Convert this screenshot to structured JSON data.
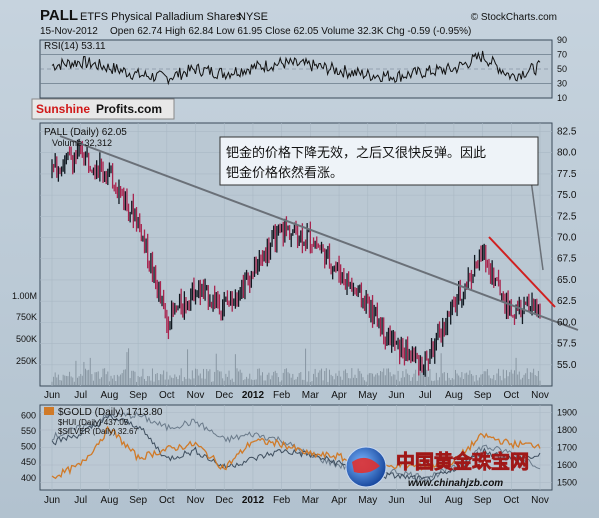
{
  "header": {
    "ticker": "PALL",
    "name": "ETFS Physical Palladium Shares",
    "exchange": "NYSE",
    "site": "© StockCharts.com",
    "date": "15-Nov-2012",
    "ohlc": "Open 62.74  High 62.84  Low 61.95  Close 62.05  Volume 32.3K  Chg -0.59 (-0.95%)"
  },
  "rsi": {
    "label": "RSI(14) 53.11",
    "ticks": [
      "90",
      "70",
      "50",
      "30",
      "10"
    ]
  },
  "brand": {
    "part1": "Sunshine",
    "part2": "Profits.com"
  },
  "price": {
    "legend_main": "PALL (Daily) 62.05",
    "legend_volume": "Volume 32,312",
    "right_ticks": [
      "82.5",
      "80.0",
      "77.5",
      "75.0",
      "72.5",
      "70.0",
      "67.5",
      "65.0",
      "62.5",
      "60.0",
      "57.5",
      "55.0"
    ],
    "volume_ticks": [
      "1.00M",
      "750K",
      "500K",
      "250K"
    ],
    "annotation_line1": "钯金的价格下降无效，之后又很快反弹。因此",
    "annotation_line2": "钯金价格依然看涨。"
  },
  "x_axis": {
    "labels": [
      "Jun",
      "Jul",
      "Aug",
      "Sep",
      "Oct",
      "Nov",
      "Dec",
      "2012",
      "Feb",
      "Mar",
      "Apr",
      "May",
      "Jun",
      "Jul",
      "Aug",
      "Sep",
      "Oct",
      "Nov"
    ]
  },
  "bottom": {
    "legend_gold": "$GOLD (Daily) 1713.80",
    "legend_hui": "$HUI (Daily) 437.05",
    "legend_silver": "$SILVER (Daily) 32.67",
    "left_ticks": [
      "600",
      "550",
      "500",
      "450",
      "400"
    ],
    "right_ticks": [
      "1900",
      "1800",
      "1700",
      "1600",
      "1500"
    ],
    "watermark_cn": "中国黄金珠宝网",
    "watermark_url": "www.chinahjzb.com"
  },
  "colors": {
    "panel_bg": "#b9c8d4",
    "frame": "#2a4a6a",
    "price_up": "#101820",
    "price_down": "#a8244e",
    "trend": "#6a7078",
    "red_trend": "#d02020",
    "gold": "#d07a28",
    "hui": "#6a7a8a",
    "silver": "#4a5a6a",
    "brand_red": "#d01818"
  },
  "chart_data": [
    {
      "type": "line",
      "name": "RSI(14)",
      "x": [
        "Jun",
        "Jul",
        "Aug",
        "Sep",
        "Oct",
        "Nov",
        "Dec",
        "2012",
        "Feb",
        "Mar",
        "Apr",
        "May",
        "Jun",
        "Jul",
        "Aug",
        "Sep",
        "Oct",
        "Nov"
      ],
      "y": [
        55,
        60,
        52,
        42,
        38,
        50,
        44,
        52,
        58,
        55,
        48,
        42,
        40,
        46,
        50,
        68,
        40,
        53
      ],
      "ylim": [
        10,
        90
      ],
      "last": 53.11
    },
    {
      "type": "bar",
      "name": "PALL (Daily)",
      "x": [
        "Jun",
        "Jul",
        "Aug",
        "Sep",
        "Oct",
        "Nov",
        "Dec",
        "2012",
        "Feb",
        "Mar",
        "Apr",
        "May",
        "Jun",
        "Jul",
        "Aug",
        "Sep",
        "Oct",
        "Nov"
      ],
      "close": [
        78,
        80,
        77.5,
        72,
        60,
        64,
        62,
        66,
        71,
        70,
        66,
        62,
        57,
        55,
        62,
        68,
        61,
        62.05
      ],
      "ylim": [
        52.5,
        83.5
      ],
      "last": 62.05
    },
    {
      "type": "line",
      "name": "$GOLD (Daily)",
      "x": [
        "Jun",
        "Jul",
        "Aug",
        "Sep",
        "Oct",
        "Nov",
        "Dec",
        "2012",
        "Feb",
        "Mar",
        "Apr",
        "May",
        "Jun",
        "Jul",
        "Aug",
        "Sep",
        "Oct",
        "Nov"
      ],
      "y": [
        1530,
        1600,
        1810,
        1640,
        1690,
        1720,
        1580,
        1740,
        1720,
        1660,
        1650,
        1560,
        1600,
        1590,
        1620,
        1770,
        1720,
        1713.8
      ],
      "last": 1713.8
    },
    {
      "type": "line",
      "name": "$HUI (Daily)",
      "x": [
        "Jun",
        "Jul",
        "Aug",
        "Sep",
        "Oct",
        "Nov",
        "Dec",
        "2012",
        "Feb",
        "Mar",
        "Apr",
        "May",
        "Jun",
        "Jul",
        "Aug",
        "Sep",
        "Oct",
        "Nov"
      ],
      "y": [
        530,
        560,
        600,
        600,
        560,
        580,
        520,
        540,
        520,
        470,
        440,
        420,
        420,
        400,
        430,
        500,
        480,
        437.05
      ],
      "last": 437.05
    },
    {
      "type": "line",
      "name": "$SILVER (Daily)",
      "x": [
        "Jun",
        "Jul",
        "Aug",
        "Sep",
        "Oct",
        "Nov",
        "Dec",
        "2012",
        "Feb",
        "Mar",
        "Apr",
        "May",
        "Jun",
        "Jul",
        "Aug",
        "Sep",
        "Oct",
        "Nov"
      ],
      "y": [
        36,
        38,
        42,
        40,
        32,
        34,
        30,
        32,
        34,
        33,
        31,
        28,
        28,
        27,
        29,
        34,
        32,
        32.67
      ],
      "last": 32.67
    }
  ]
}
